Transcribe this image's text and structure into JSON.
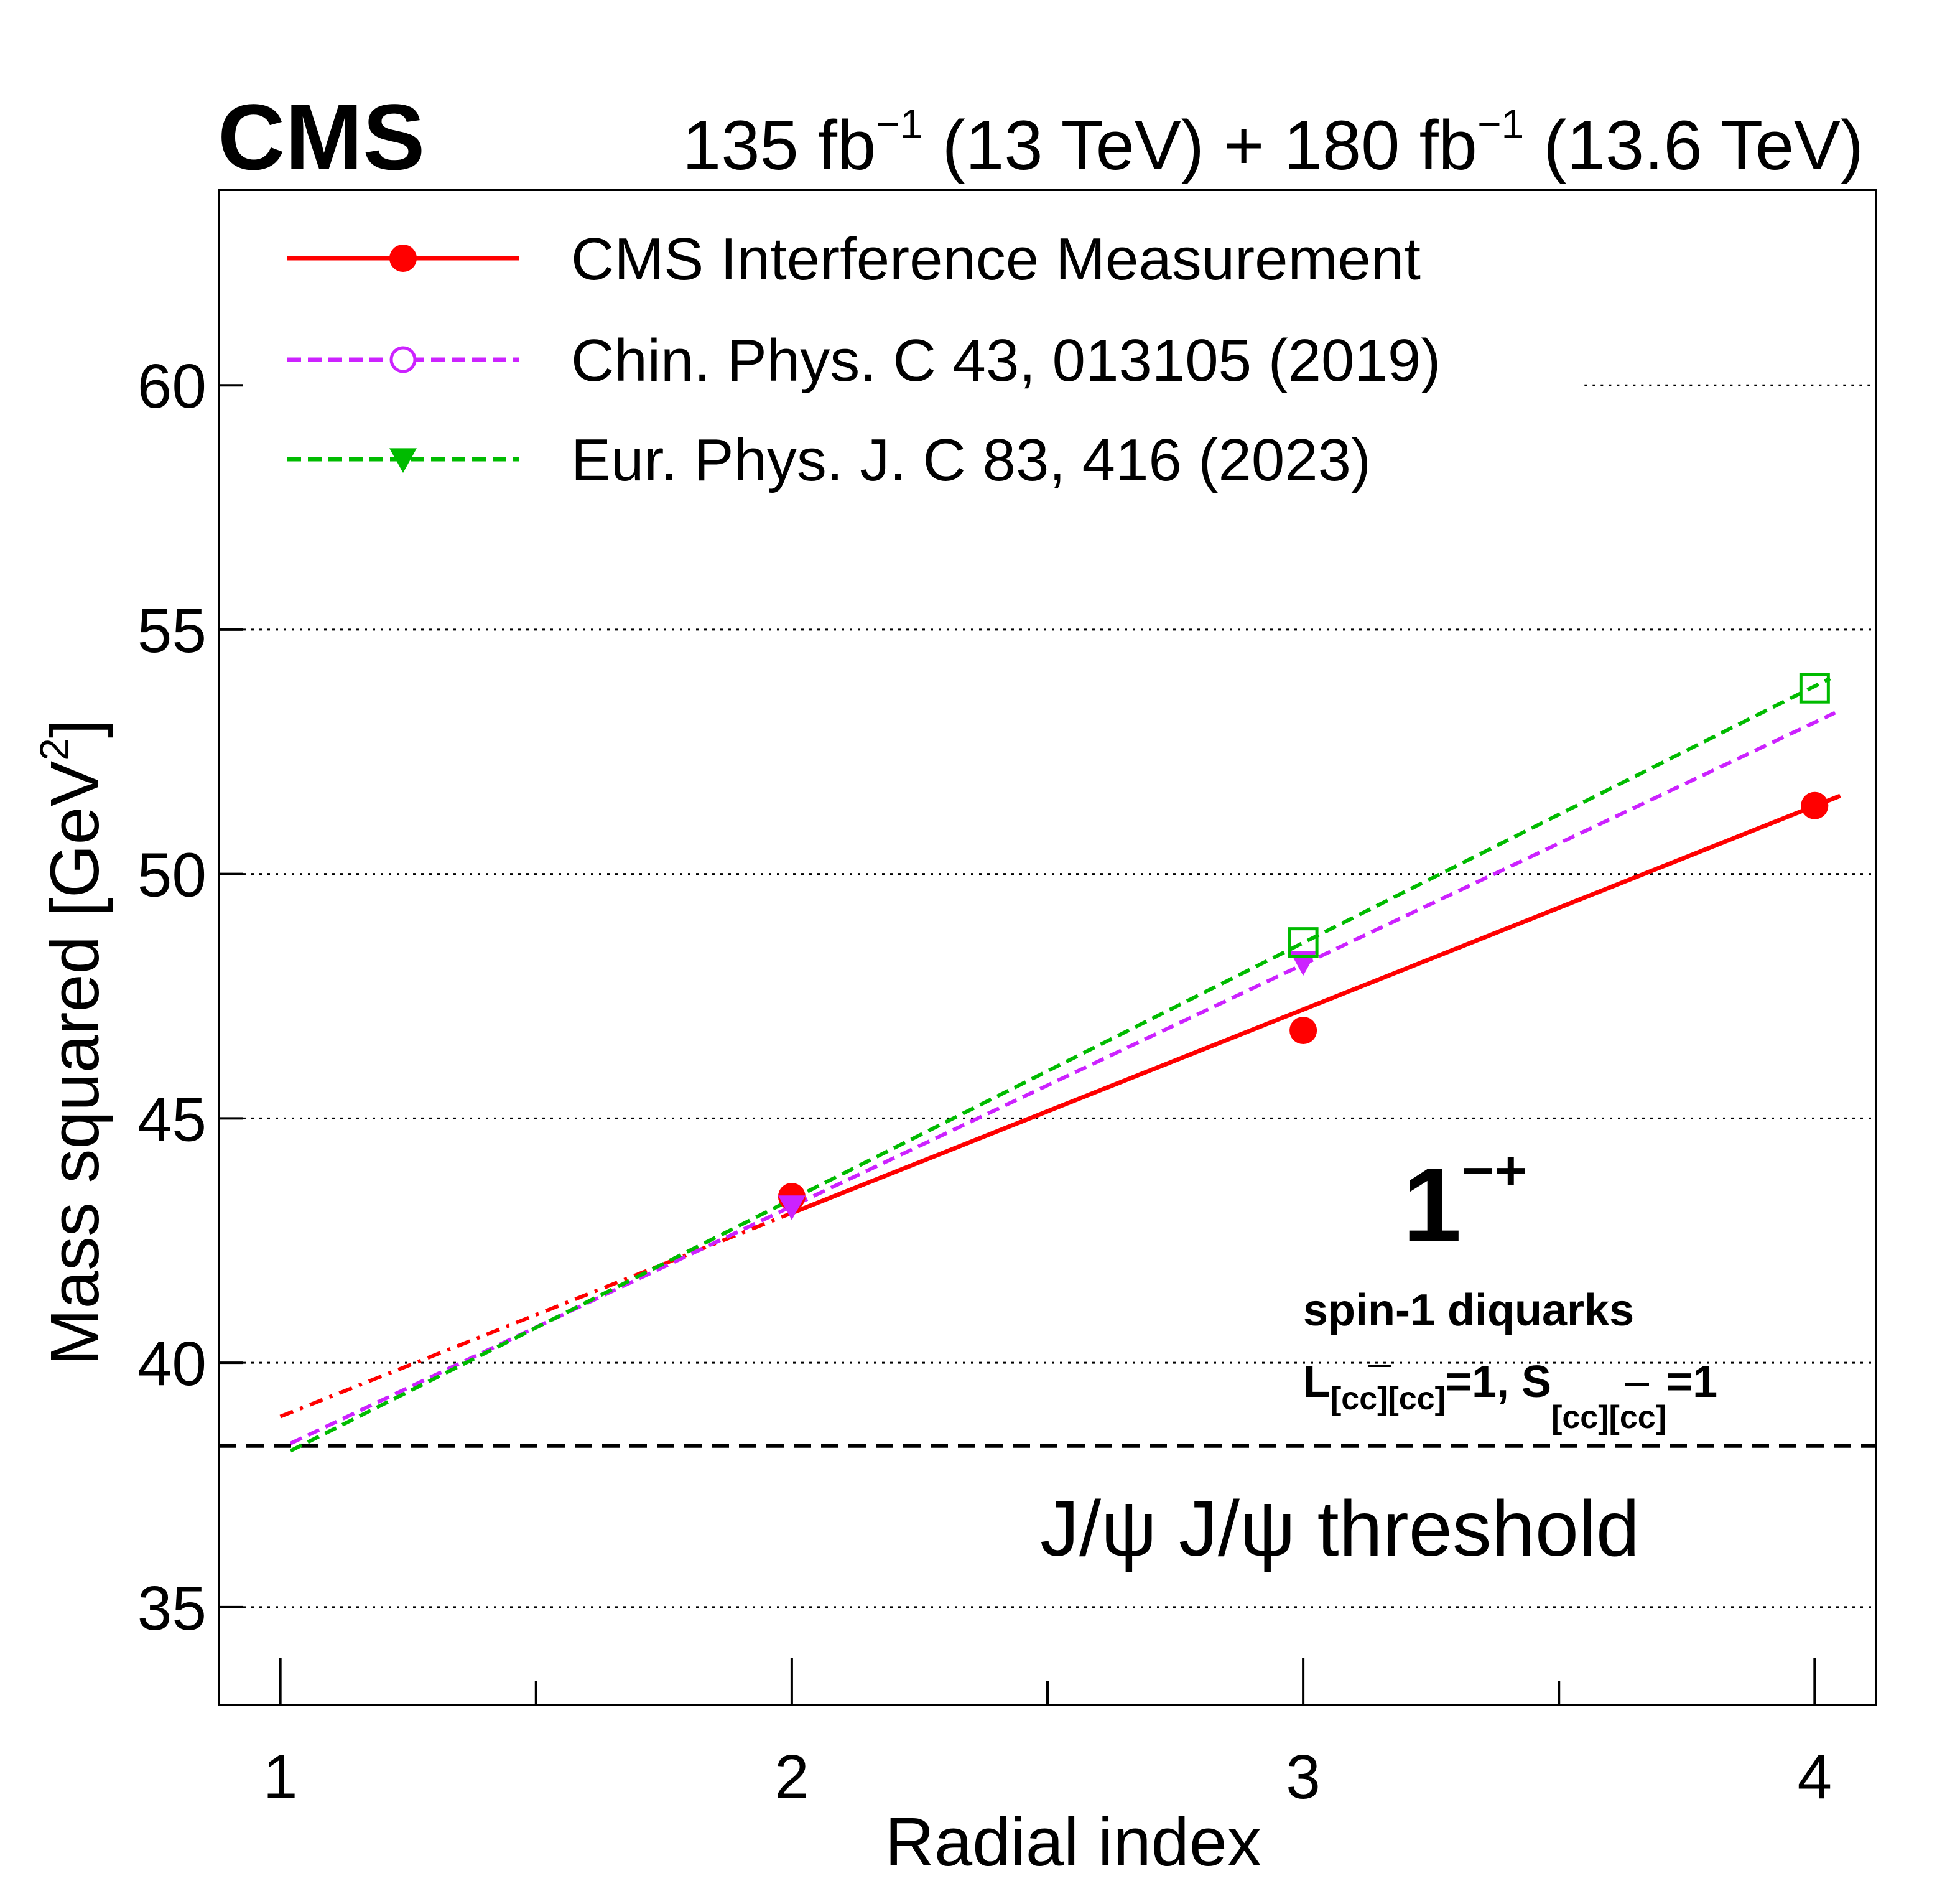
{
  "chart_data": {
    "type": "line",
    "experiment": "CMS",
    "lumi": {
      "part1": "135 fb",
      "sup1": "−1",
      "part2": " (13 TeV) + 180 fb",
      "sup2": "−1",
      "part3": " (13.6 TeV)"
    },
    "xlabel": "Radial index",
    "ylabel_main": "Mass squared [GeV",
    "ylabel_sup": "2",
    "ylabel_end": "]",
    "xlim": [
      0.88,
      4.12
    ],
    "ylim": [
      33,
      64
    ],
    "xticks": [
      "1",
      "2",
      "3",
      "4"
    ],
    "yticks": [
      "35",
      "40",
      "45",
      "50",
      "55",
      "60"
    ],
    "grid": "y-dotted",
    "legend_position": "top-left",
    "series": [
      {
        "name": "CMS Interference Measurement",
        "color": "#ff0000",
        "style": "solid",
        "marker": "filled-circle",
        "x": [
          2,
          3,
          4
        ],
        "y": [
          43.4,
          46.8,
          51.4
        ],
        "fit": {
          "x_start": 1.0,
          "x_end": 4.05,
          "y_start": 38.9,
          "y_end": 51.6,
          "extrapolate_below": 2.0
        }
      },
      {
        "name": "Chin. Phys. C 43, 013105 (2019)",
        "color": "#cc22ff",
        "style": "dashed",
        "marker": "open-circle",
        "points_marker": "filled-triangle-down",
        "x": [
          2,
          3
        ],
        "y": [
          43.2,
          48.2
        ],
        "fit": {
          "x_start": 1.02,
          "x_end": 4.04,
          "y_start": 38.35,
          "y_end": 53.3
        }
      },
      {
        "name": "Eur. Phys. J. C 83, 416 (2023)",
        "color": "#00bb00",
        "style": "dashed",
        "marker": "filled-triangle-down",
        "points_marker": "open-square",
        "x": [
          3,
          4
        ],
        "y": [
          48.6,
          53.8
        ],
        "fit": {
          "x_start": 1.02,
          "x_end": 4.03,
          "y_start": 38.2,
          "y_end": 54.0
        }
      }
    ],
    "threshold": {
      "y": 38.3,
      "label": "J/ψ J/ψ threshold"
    },
    "annotation": {
      "jpc": "1",
      "jpc_sup": "−+",
      "line1": "spin-1 diquarks",
      "line2_a": "L",
      "line2_sub_a": "[cc][cc]",
      "line2_b": "=1, S",
      "line2_sub_b": "[cc][cc]",
      "line2_c": "=1"
    }
  }
}
